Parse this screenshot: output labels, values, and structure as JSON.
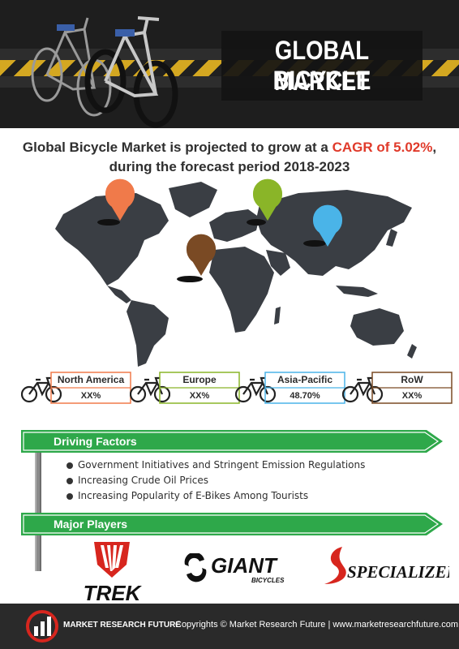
{
  "banner": {
    "title_line1": "GLOBAL BICYCLE",
    "title_line2": "MARKET"
  },
  "headline": {
    "part1": "Global Bicycle Market is projected to grow at a ",
    "highlight": "CAGR of 5.02%",
    "part2": ",",
    "line2": "during the forecast period 2018-2023"
  },
  "regions": [
    {
      "name": "North America",
      "value": "XX%",
      "color": "#f07a4a"
    },
    {
      "name": "Europe",
      "value": "XX%",
      "color": "#8ab528"
    },
    {
      "name": "Asia-Pacific",
      "value": "48.70%",
      "color": "#4ab4e8"
    },
    {
      "name": "RoW",
      "value": "XX%",
      "color": "#7a4a24"
    }
  ],
  "map_pins": {
    "north_america": "#f07a4a",
    "europe": "#8ab528",
    "asia_pacific": "#4ab4e8",
    "row": "#7a4a24"
  },
  "driving_factors": {
    "title": "Driving Factors",
    "items": [
      "Government Initiatives and Stringent Emission Regulations",
      "Increasing Crude Oil Prices",
      "Increasing Popularity of E-Bikes Among Tourists"
    ]
  },
  "major_players": {
    "title": "Major Players",
    "logos": [
      "TREK",
      "GIANT",
      "BICYCLES",
      "SPECIALIZED"
    ]
  },
  "footer": {
    "brand": "MARKET RESEARCH FUTURE",
    "copyright": "Copyrights © Market Research Future | www.marketresearchfuture.com"
  },
  "colors": {
    "sign_green": "#2ea84a",
    "accent_red": "#e03a2a",
    "map_dark": "#3a3e44",
    "footer_bg": "#2a2a2a"
  }
}
